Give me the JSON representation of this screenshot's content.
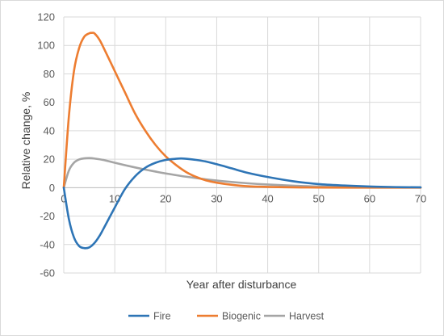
{
  "chart_data": {
    "type": "line",
    "title": "",
    "xlabel": "Year after disturbance",
    "ylabel": "Relative change, %",
    "xlim": [
      0,
      70
    ],
    "ylim": [
      -60,
      120
    ],
    "xticks": [
      0,
      10,
      20,
      30,
      40,
      50,
      60,
      70
    ],
    "yticks": [
      -60,
      -40,
      -20,
      0,
      20,
      40,
      60,
      80,
      100,
      120
    ],
    "grid": true,
    "legend_position": "bottom",
    "series": [
      {
        "name": "Fire",
        "color": "#2e75b6",
        "x": [
          0,
          1,
          2,
          3,
          4,
          5,
          6,
          7,
          8,
          10,
          12,
          14,
          16,
          18,
          20,
          22,
          23,
          24,
          26,
          28,
          30,
          33,
          36,
          40,
          45,
          50,
          55,
          60,
          65,
          70
        ],
        "y": [
          0,
          -22,
          -35,
          -41,
          -42.5,
          -42,
          -39,
          -34,
          -27.5,
          -14,
          -1,
          8,
          14,
          17.5,
          19.5,
          20.3,
          20.5,
          20.3,
          19.5,
          18.3,
          16.5,
          13.5,
          10.5,
          7.5,
          4.5,
          2.5,
          1.5,
          0.8,
          0.4,
          0.2
        ]
      },
      {
        "name": "Biogenic",
        "color": "#ed7d31",
        "x": [
          0,
          1,
          2,
          3,
          4,
          5,
          5.5,
          6,
          7,
          8,
          10,
          12,
          14,
          16,
          18,
          20,
          22,
          24,
          26,
          28,
          30,
          33,
          36,
          40,
          45,
          50,
          60,
          70
        ],
        "y": [
          0,
          50,
          82,
          98,
          106,
          108.5,
          108.8,
          108.5,
          104,
          97,
          82,
          67,
          52,
          40,
          30,
          22,
          16,
          11,
          7.5,
          5,
          3.5,
          2,
          1,
          0.5,
          0.2,
          0.1,
          0,
          0
        ]
      },
      {
        "name": "Harvest",
        "color": "#a5a5a5",
        "x": [
          0,
          1,
          2,
          3,
          4,
          5,
          6,
          8,
          10,
          12,
          14,
          16,
          18,
          20,
          24,
          28,
          32,
          36,
          40,
          45,
          50,
          60,
          70
        ],
        "y": [
          0,
          12,
          17.5,
          19.8,
          20.6,
          20.8,
          20.5,
          19.3,
          17.5,
          15.8,
          14.2,
          12.7,
          11.3,
          10,
          7.7,
          5.8,
          4.3,
          3.1,
          2.2,
          1.4,
          0.8,
          0.3,
          0.1
        ]
      }
    ]
  }
}
